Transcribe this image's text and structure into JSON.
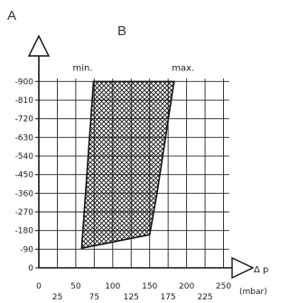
{
  "chart_data": {
    "type": "area",
    "panel_label_a": "A",
    "panel_label_b": "B",
    "xlabel": "Δ p",
    "xunit": "(mbar)",
    "ylabel": "",
    "xlim": [
      0,
      260
    ],
    "ylim": [
      0,
      940
    ],
    "x_ticks": [
      0,
      25,
      50,
      75,
      100,
      125,
      150,
      175,
      200,
      225,
      250
    ],
    "y_ticks": [
      0,
      90,
      180,
      270,
      360,
      450,
      540,
      630,
      720,
      810,
      900
    ],
    "y_tick_labels": [
      "0",
      "-90",
      "-180",
      "-270",
      "-360",
      "-450",
      "-540",
      "-630",
      "-720",
      "-810",
      "-900"
    ],
    "grid": true,
    "series": [
      {
        "name": "min.",
        "points": [
          [
            58,
            95
          ],
          [
            74,
            900
          ]
        ]
      },
      {
        "name": "max.",
        "points": [
          [
            150,
            160
          ],
          [
            160,
            360
          ],
          [
            183,
            900
          ]
        ]
      }
    ],
    "region": {
      "pattern": "crosshatch",
      "polygon": [
        [
          58,
          95
        ],
        [
          74,
          900
        ],
        [
          183,
          900
        ],
        [
          160,
          360
        ],
        [
          150,
          160
        ]
      ]
    }
  }
}
